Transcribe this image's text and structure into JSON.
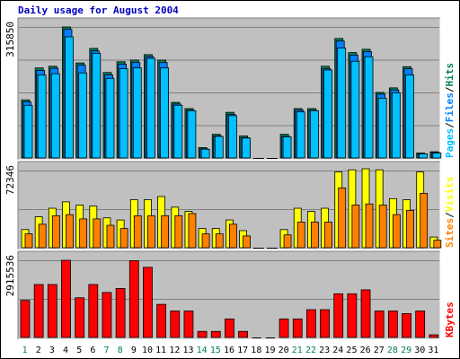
{
  "chart_data": {
    "type": "bar",
    "title": "Daily usage for August 2004",
    "categories": [
      "1",
      "2",
      "3",
      "4",
      "5",
      "6",
      "7",
      "8",
      "9",
      "10",
      "11",
      "12",
      "13",
      "14",
      "15",
      "16",
      "17",
      "18",
      "19",
      "20",
      "21",
      "22",
      "23",
      "24",
      "25",
      "26",
      "27",
      "28",
      "29",
      "30",
      "31"
    ],
    "weekend_days": [
      "1",
      "7",
      "8",
      "14",
      "15",
      "21",
      "22",
      "28",
      "29"
    ],
    "panels": [
      {
        "id": "hits_files_pages",
        "max_label": "315850",
        "ylim": [
          0,
          315850
        ],
        "side_label": [
          "Pages",
          "Files",
          "Hits"
        ],
        "series": [
          {
            "name": "Hits",
            "color": "#00805c",
            "values": [
              140000,
              217000,
              221000,
              315850,
              229000,
              264000,
              206000,
              232000,
              236000,
              249000,
              236000,
              134000,
              119000,
              25000,
              57000,
              110000,
              53000,
              0,
              0,
              57000,
              119000,
              119000,
              221000,
              288000,
              254000,
              262000,
              158000,
              169000,
              220000,
              12000,
              15000
            ]
          },
          {
            "name": "Files",
            "color": "#0080ff",
            "values": [
              135000,
              211000,
              216000,
              310000,
              224000,
              258000,
              200000,
              226000,
              230000,
              244000,
              230000,
              130000,
              115000,
              22000,
              53000,
              105000,
              49000,
              0,
              0,
              52000,
              115000,
              115000,
              215000,
              282000,
              248000,
              256000,
              154000,
              164000,
              215000,
              10000,
              13000
            ]
          },
          {
            "name": "Pages",
            "color": "#00c0ff",
            "values": [
              127000,
              200000,
              203000,
              292000,
              205000,
              252000,
              192000,
              215000,
              217000,
              240000,
              217000,
              127000,
              114000,
              21000,
              52000,
              102000,
              48000,
              0,
              0,
              51000,
              111000,
              114000,
              212000,
              265000,
              233000,
              244000,
              144000,
              157000,
              200000,
              10000,
              12000
            ]
          }
        ]
      },
      {
        "id": "visits_sites",
        "max_label": "72346",
        "ylim": [
          0,
          72346
        ],
        "side_label": [
          "Sites",
          "Visits"
        ],
        "series": [
          {
            "name": "Visits",
            "color": "#ffff00",
            "values": [
              17000,
              29000,
              37000,
              43000,
              40000,
              39000,
              28000,
              26000,
              45000,
              45000,
              48000,
              38000,
              34000,
              18000,
              18000,
              26000,
              16000,
              0,
              0,
              17000,
              37000,
              34000,
              37000,
              71000,
              73000,
              74000,
              73000,
              46000,
              45000,
              71000,
              10000
            ]
          },
          {
            "name": "Sites",
            "color": "#ff8000",
            "values": [
              13000,
              22000,
              30000,
              31000,
              27000,
              27000,
              21000,
              18000,
              30000,
              30000,
              30000,
              30000,
              32000,
              13000,
              13000,
              22000,
              11000,
              0,
              0,
              12000,
              24000,
              24000,
              24000,
              56000,
              40000,
              41000,
              40000,
              31000,
              35000,
              51000,
              7000
            ]
          }
        ]
      },
      {
        "id": "kbytes",
        "max_label": "2915536",
        "ylim": [
          0,
          2915536
        ],
        "side_label": [
          "KBytes"
        ],
        "series": [
          {
            "name": "KBytes",
            "color": "#ff0000",
            "values": [
              1400000,
              2000000,
              2000000,
              2915536,
              1500000,
              2000000,
              1700000,
              1850000,
              2900000,
              2650000,
              1250000,
              1000000,
              1000000,
              230000,
              230000,
              700000,
              230000,
              0,
              0,
              700000,
              700000,
              1050000,
              1050000,
              1650000,
              1650000,
              1800000,
              1000000,
              1000000,
              900000,
              1000000,
              100000
            ]
          }
        ]
      }
    ],
    "grid": true,
    "legend": "right-vertical"
  }
}
